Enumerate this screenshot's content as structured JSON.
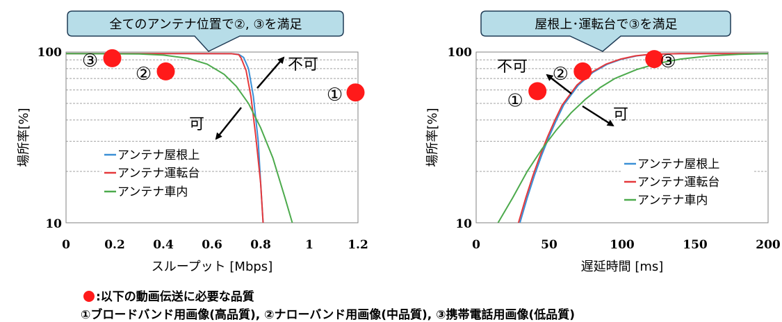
{
  "chart_data": [
    {
      "type": "line",
      "callout": "全てのアンテナ位置で②, ③を満足",
      "xlabel": "スループット [Mbps]",
      "ylabel": "場所率[%]",
      "xlim": [
        0,
        1.2
      ],
      "ylim": [
        10,
        100
      ],
      "yscale": "log",
      "x_ticks": [
        "0",
        "0.2",
        "0.4",
        "0.6",
        "0.8",
        "1",
        "1.2"
      ],
      "y_ticks": [
        "10",
        "100"
      ],
      "grid": "horizontal, dashed",
      "legend_position": "lower-left",
      "series": [
        {
          "name": "アンテナ屋根上",
          "color": "#3a8fd6",
          "points": [
            [
              0,
              98
            ],
            [
              0.5,
              98
            ],
            [
              0.68,
              97.8
            ],
            [
              0.71,
              97
            ],
            [
              0.73,
              93
            ],
            [
              0.75,
              80
            ],
            [
              0.77,
              55
            ],
            [
              0.79,
              30
            ],
            [
              0.8,
              17
            ],
            [
              0.81,
              10
            ]
          ]
        },
        {
          "name": "アンテナ運転台",
          "color": "#e5383b",
          "points": [
            [
              0,
              98
            ],
            [
              0.5,
              98
            ],
            [
              0.68,
              97.8
            ],
            [
              0.71,
              96.5
            ],
            [
              0.72,
              92
            ],
            [
              0.74,
              78
            ],
            [
              0.76,
              55
            ],
            [
              0.78,
              32
            ],
            [
              0.8,
              17
            ],
            [
              0.81,
              10
            ]
          ]
        },
        {
          "name": "アンテナ車内",
          "color": "#4caa4c",
          "points": [
            [
              0,
              98
            ],
            [
              0.3,
              97.5
            ],
            [
              0.4,
              96
            ],
            [
              0.5,
              92
            ],
            [
              0.58,
              85
            ],
            [
              0.65,
              74
            ],
            [
              0.7,
              63
            ],
            [
              0.75,
              50
            ],
            [
              0.8,
              36
            ],
            [
              0.85,
              24
            ],
            [
              0.9,
              14
            ],
            [
              0.93,
              10
            ]
          ]
        }
      ],
      "markers": [
        {
          "label": "①",
          "x": 1.19,
          "y": 58
        },
        {
          "label": "②",
          "x": 0.41,
          "y": 77
        },
        {
          "label": "③",
          "x": 0.19,
          "y": 92
        }
      ],
      "annotations": [
        {
          "text": "不可",
          "x": 0.93,
          "y": 89
        },
        {
          "text": "可",
          "x": 0.58,
          "y": 33
        }
      ]
    },
    {
      "type": "line",
      "callout": "屋根上･運転台で③を満足",
      "xlabel": "遅延時間 [ms]",
      "ylabel": "場所率[%]",
      "xlim": [
        0,
        200
      ],
      "ylim": [
        10,
        100
      ],
      "yscale": "log",
      "x_ticks": [
        "0",
        "50",
        "100",
        "150",
        "200"
      ],
      "y_ticks": [
        "10",
        "100"
      ],
      "grid": "horizontal, dashed",
      "legend_position": "lower-right",
      "series": [
        {
          "name": "アンテナ屋根上",
          "color": "#3a8fd6",
          "points": [
            [
              30,
              10
            ],
            [
              35,
              14
            ],
            [
              40,
              19
            ],
            [
              45,
              25
            ],
            [
              50,
              32
            ],
            [
              55,
              40
            ],
            [
              60,
              49
            ],
            [
              70,
              64
            ],
            [
              80,
              76
            ],
            [
              90,
              85
            ],
            [
              100,
              91
            ],
            [
              110,
              95
            ],
            [
              120,
              97
            ],
            [
              140,
              98
            ],
            [
              200,
              98
            ]
          ]
        },
        {
          "name": "アンテナ運転台",
          "color": "#e5383b",
          "points": [
            [
              29,
              10
            ],
            [
              34,
              14
            ],
            [
              39,
              19
            ],
            [
              44,
              25
            ],
            [
              49,
              32
            ],
            [
              54,
              40
            ],
            [
              59,
              49
            ],
            [
              69,
              64
            ],
            [
              79,
              76
            ],
            [
              89,
              85
            ],
            [
              99,
              91
            ],
            [
              109,
              95
            ],
            [
              119,
              97
            ],
            [
              140,
              98
            ],
            [
              200,
              98
            ]
          ]
        },
        {
          "name": "アンテナ車内",
          "color": "#4caa4c",
          "points": [
            [
              15,
              10
            ],
            [
              25,
              14
            ],
            [
              35,
              20
            ],
            [
              45,
              27
            ],
            [
              55,
              35
            ],
            [
              65,
              44
            ],
            [
              75,
              53
            ],
            [
              85,
              62
            ],
            [
              95,
              70
            ],
            [
              110,
              79
            ],
            [
              125,
              86
            ],
            [
              140,
              91
            ],
            [
              160,
              95
            ],
            [
              180,
              97
            ],
            [
              200,
              98
            ]
          ]
        }
      ],
      "markers": [
        {
          "label": "①",
          "x": 42,
          "y": 59
        },
        {
          "label": "②",
          "x": 73,
          "y": 77
        },
        {
          "label": "③",
          "x": 122,
          "y": 91
        }
      ],
      "annotations": [
        {
          "text": "不可",
          "x": 40,
          "y": 84
        },
        {
          "text": "可",
          "x": 102,
          "y": 45
        }
      ]
    }
  ],
  "footnote": {
    "line1": ":以下の動画伝送に必要な品質",
    "line2": "①ブロードバンド用画像(高品質), ②ナローバンド用画像(中品質), ③携帯電話用画像(低品質)"
  }
}
